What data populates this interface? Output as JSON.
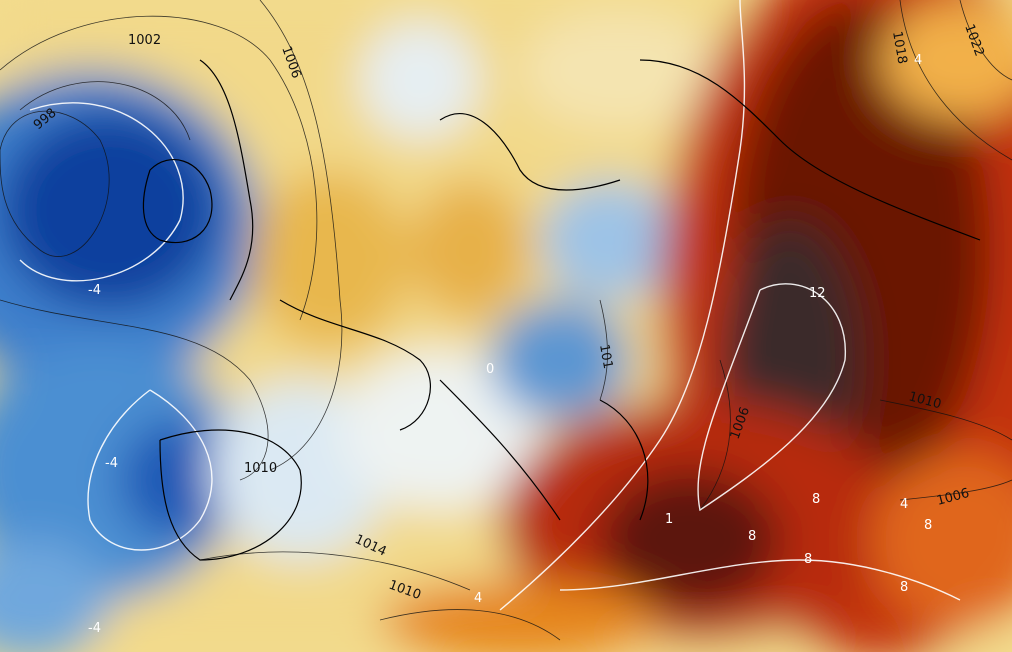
{
  "isobar_labels": [
    "1002",
    "1006",
    "998",
    "1010",
    "1014",
    "1018",
    "1022",
    "1006",
    "1010",
    "1006",
    "101",
    "1010"
  ],
  "anomaly_labels": [
    "12",
    "-4",
    "-4",
    "-4",
    "4",
    "4",
    "8",
    "8",
    "8",
    "8",
    "8",
    "4",
    "1",
    "0"
  ]
}
